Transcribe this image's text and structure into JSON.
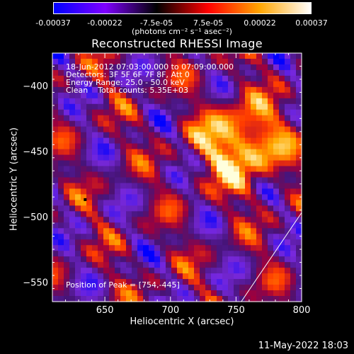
{
  "colorbar": {
    "ticks": [
      "-0.00037",
      "-0.00022",
      "-7.5e-05",
      "7.5e-05",
      "0.00022",
      "0.00037"
    ],
    "unit_label": "(photons cm⁻² s⁻¹ asec⁻²)",
    "colors": [
      "#0000ff",
      "#7f00ff",
      "#000000",
      "#ff0000",
      "#ffa500",
      "#ffffff"
    ]
  },
  "annotations": {
    "line1": "18-Jun-2012 07:03:00.000 to 07:09:00.000",
    "line2": "Detectors: 3F 5F 6F 7F 8F, Att 0",
    "line3": "Energy Range: 25.0 - 50.0 keV",
    "line4": "Clean    Total counts: 5.35E+03",
    "peak": "Position of Peak = [754,-445]"
  },
  "timestamp": "11-May-2022 18:03",
  "chart_data": {
    "type": "heatmap",
    "title": "Reconstructed RHESSI Image",
    "xlabel": "Heliocentric X (arcsec)",
    "ylabel": "Heliocentric Y (arcsec)",
    "xlim": [
      610,
      800
    ],
    "ylim": [
      -565,
      -375
    ],
    "xticks": [
      650,
      700,
      750,
      800
    ],
    "yticks": [
      -400,
      -450,
      -500,
      -550
    ],
    "peak": [
      754,
      -445
    ],
    "colorbar_range": [
      -0.00037,
      0.00037
    ],
    "grid": false
  }
}
